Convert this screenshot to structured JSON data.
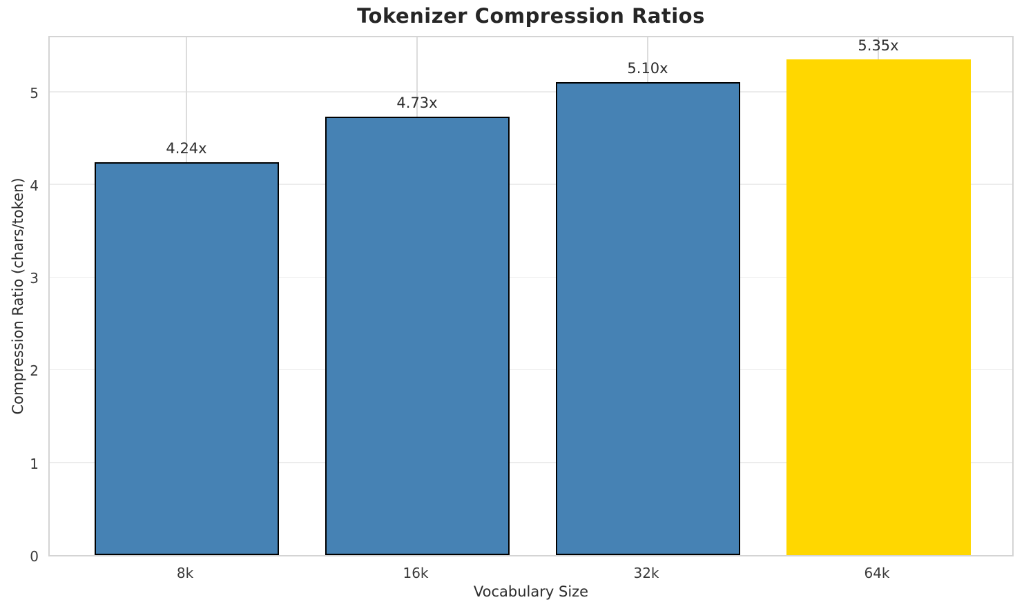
{
  "chart_data": {
    "type": "bar",
    "title": "Tokenizer Compression Ratios",
    "xlabel": "Vocabulary Size",
    "ylabel": "Compression Ratio (chars/token)",
    "categories": [
      "8k",
      "16k",
      "32k",
      "64k"
    ],
    "values": [
      4.24,
      4.73,
      5.1,
      5.35
    ],
    "bar_labels": [
      "4.24x",
      "4.73x",
      "5.10x",
      "5.35x"
    ],
    "yticks": [
      0,
      1,
      2,
      3,
      4,
      5
    ],
    "ylim": [
      0,
      5.62
    ],
    "grid": true,
    "legend_position": "none",
    "highlighted_category": "64k",
    "bar_colors": [
      "#4682b4",
      "#4682b4",
      "#4682b4",
      "#ffd700"
    ],
    "bar_edge_colors": [
      "#000000",
      "#000000",
      "#000000",
      "none"
    ]
  },
  "colors": {
    "bar_blue": "#4682b4",
    "bar_gold": "#ffd700",
    "bar_edge": "#000000",
    "grid_h": "#ececec",
    "grid_v": "#dcdcdc",
    "spine": "#d4d4d4",
    "title_text": "#262626",
    "tick_text": "#3a3a3a",
    "label_text": "#2d2d2d"
  }
}
